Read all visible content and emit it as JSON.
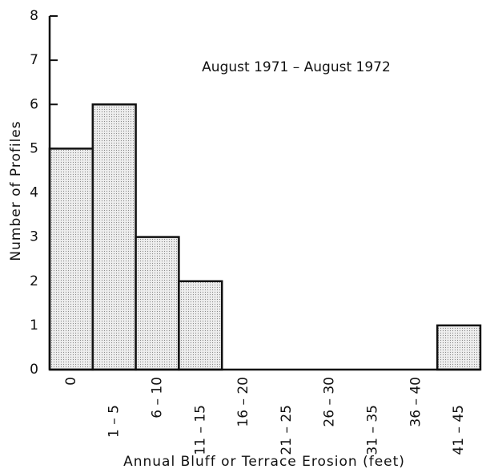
{
  "chart_data": {
    "type": "bar",
    "annotation": "August 1971 – August 1972",
    "x_label": "Annual Bluff or Terrace Erosion (feet)",
    "y_label": "Number of Profiles",
    "categories": [
      "0",
      "1 – 5",
      "6 – 10",
      "11 – 15",
      "16 – 20",
      "21 – 25",
      "26 – 30",
      "31 – 35",
      "36 – 40",
      "41 – 45"
    ],
    "values": [
      5,
      6,
      3,
      2,
      0,
      0,
      0,
      0,
      0,
      1
    ],
    "color": "#e4e4e4",
    "ylim": [
      0,
      8
    ],
    "yticks": [
      0,
      1,
      2,
      3,
      4,
      5,
      6,
      7,
      8
    ],
    "grid": false
  }
}
